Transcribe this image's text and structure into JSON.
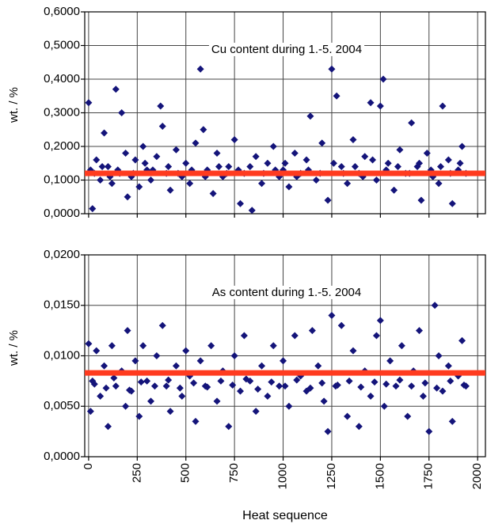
{
  "chart_data": [
    {
      "type": "scatter",
      "title": "Cu content during 1.-5. 2004",
      "y_label": "wt. / %",
      "color": "#14147a",
      "x": [
        0,
        10,
        20,
        40,
        60,
        80,
        100,
        120,
        140,
        160,
        170,
        190,
        200,
        220,
        240,
        260,
        280,
        300,
        320,
        350,
        370,
        380,
        400,
        420,
        450,
        480,
        500,
        520,
        550,
        575,
        590,
        610,
        640,
        660,
        690,
        720,
        750,
        780,
        800,
        840,
        860,
        890,
        920,
        950,
        980,
        1000,
        1030,
        1060,
        1090,
        1120,
        1140,
        1170,
        1200,
        1230,
        1250,
        1275,
        1300,
        1330,
        1360,
        1390,
        1420,
        1450,
        1480,
        1500,
        1515,
        1540,
        1570,
        1600,
        1630,
        1660,
        1690,
        1710,
        1740,
        1770,
        1800,
        1820,
        1850,
        1870,
        1900,
        1920,
        1940,
        30,
        70,
        110,
        150,
        230,
        290,
        330,
        410,
        460,
        530,
        600,
        670,
        710,
        770,
        830,
        900,
        960,
        1010,
        1070,
        1130,
        1190,
        1260,
        1310,
        1370,
        1410,
        1460,
        1530,
        1590,
        1650,
        1700,
        1760,
        1810,
        1860,
        1910
      ],
      "values": [
        0.33,
        0.13,
        0.015,
        0.16,
        0.1,
        0.24,
        0.14,
        0.09,
        0.37,
        0.12,
        0.3,
        0.18,
        0.05,
        0.11,
        0.16,
        0.08,
        0.2,
        0.13,
        0.1,
        0.17,
        0.32,
        0.26,
        0.12,
        0.07,
        0.19,
        0.11,
        0.15,
        0.09,
        0.21,
        0.43,
        0.25,
        0.13,
        0.06,
        0.18,
        0.11,
        0.14,
        0.22,
        0.03,
        0.12,
        0.01,
        0.17,
        0.09,
        0.15,
        0.2,
        0.11,
        0.13,
        0.08,
        0.18,
        0.12,
        0.16,
        0.29,
        0.1,
        0.21,
        0.04,
        0.43,
        0.35,
        0.14,
        0.09,
        0.22,
        0.12,
        0.17,
        0.33,
        0.1,
        0.32,
        0.4,
        0.15,
        0.07,
        0.19,
        0.12,
        0.27,
        0.14,
        0.04,
        0.18,
        0.11,
        0.09,
        0.32,
        0.16,
        0.03,
        0.13,
        0.2,
        0.12,
        0.12,
        0.14,
        0.11,
        0.13,
        0.12,
        0.15,
        0.13,
        0.14,
        0.12,
        0.13,
        0.11,
        0.14,
        0.12,
        0.13,
        0.14,
        0.12,
        0.13,
        0.15,
        0.11,
        0.13,
        0.12,
        0.15,
        0.12,
        0.14,
        0.11,
        0.16,
        0.13,
        0.14,
        0.12,
        0.15,
        0.13,
        0.14,
        0.12,
        0.15
      ],
      "reference_line": {
        "value": 0.12,
        "color": "#ff3b1f"
      },
      "xlim": [
        -20,
        2040
      ],
      "xticks": [
        0,
        250,
        500,
        750,
        1000,
        1250,
        1500,
        1750,
        2000
      ],
      "ylim": [
        0,
        0.6
      ],
      "yticks": [
        {
          "value": 0,
          "label": "0,0000"
        },
        {
          "value": 0.1,
          "label": "0,1000"
        },
        {
          "value": 0.2,
          "label": "0,2000"
        },
        {
          "value": 0.3,
          "label": "0,3000"
        },
        {
          "value": 0.4,
          "label": "0,4000"
        },
        {
          "value": 0.5,
          "label": "0,5000"
        },
        {
          "value": 0.6,
          "label": "0,6000"
        }
      ],
      "grid": true
    },
    {
      "type": "scatter",
      "title": "As content during 1.-5. 2004",
      "y_label": "wt. / %",
      "x_label": "Heat sequence",
      "color": "#14147a",
      "x": [
        0,
        10,
        20,
        40,
        60,
        80,
        100,
        120,
        140,
        170,
        190,
        200,
        220,
        240,
        260,
        280,
        300,
        320,
        350,
        380,
        400,
        420,
        450,
        480,
        500,
        520,
        550,
        575,
        600,
        630,
        660,
        690,
        720,
        750,
        780,
        800,
        830,
        860,
        890,
        920,
        950,
        980,
        1000,
        1030,
        1060,
        1090,
        1120,
        1150,
        1180,
        1210,
        1230,
        1250,
        1270,
        1300,
        1330,
        1360,
        1390,
        1420,
        1450,
        1480,
        1500,
        1520,
        1550,
        1580,
        1610,
        1640,
        1670,
        1700,
        1720,
        1750,
        1780,
        1800,
        1820,
        1850,
        1870,
        1900,
        1920,
        1940,
        30,
        90,
        130,
        210,
        270,
        340,
        410,
        470,
        540,
        610,
        680,
        740,
        810,
        870,
        940,
        1010,
        1070,
        1140,
        1200,
        1280,
        1340,
        1400,
        1470,
        1530,
        1600,
        1660,
        1730,
        1790,
        1860,
        1930
      ],
      "values": [
        0.0112,
        0.0045,
        0.0075,
        0.0105,
        0.006,
        0.009,
        0.003,
        0.011,
        0.007,
        0.0085,
        0.005,
        0.0125,
        0.0065,
        0.0095,
        0.004,
        0.011,
        0.0075,
        0.0055,
        0.01,
        0.013,
        0.007,
        0.0045,
        0.009,
        0.006,
        0.0105,
        0.008,
        0.0035,
        0.0095,
        0.007,
        0.011,
        0.0055,
        0.0085,
        0.003,
        0.01,
        0.0065,
        0.012,
        0.0075,
        0.0045,
        0.009,
        0.006,
        0.011,
        0.007,
        0.0095,
        0.005,
        0.012,
        0.008,
        0.0065,
        0.0125,
        0.009,
        0.0055,
        0.0025,
        0.014,
        0.007,
        0.013,
        0.004,
        0.0105,
        0.003,
        0.0085,
        0.006,
        0.012,
        0.0135,
        0.005,
        0.0095,
        0.007,
        0.011,
        0.004,
        0.0085,
        0.0125,
        0.006,
        0.0025,
        0.015,
        0.01,
        0.0065,
        0.009,
        0.0035,
        0.008,
        0.0115,
        0.007,
        0.0072,
        0.0068,
        0.0078,
        0.0066,
        0.0074,
        0.007,
        0.0076,
        0.0068,
        0.0073,
        0.0069,
        0.0075,
        0.0071,
        0.0077,
        0.0067,
        0.0074,
        0.007,
        0.0076,
        0.0068,
        0.0073,
        0.0071,
        0.0075,
        0.0069,
        0.0074,
        0.0072,
        0.0076,
        0.007,
        0.0073,
        0.0068,
        0.0075,
        0.0071
      ],
      "reference_line": {
        "value": 0.0083,
        "color": "#ff3b1f"
      },
      "xlim": [
        -20,
        2040
      ],
      "xticks": [
        0,
        250,
        500,
        750,
        1000,
        1250,
        1500,
        1750,
        2000
      ],
      "ylim": [
        0,
        0.02
      ],
      "yticks": [
        {
          "value": 0,
          "label": "0,0000"
        },
        {
          "value": 0.005,
          "label": "0,0050"
        },
        {
          "value": 0.01,
          "label": "0,0100"
        },
        {
          "value": 0.015,
          "label": "0,0150"
        },
        {
          "value": 0.02,
          "label": "0,0200"
        }
      ],
      "grid": true
    }
  ]
}
